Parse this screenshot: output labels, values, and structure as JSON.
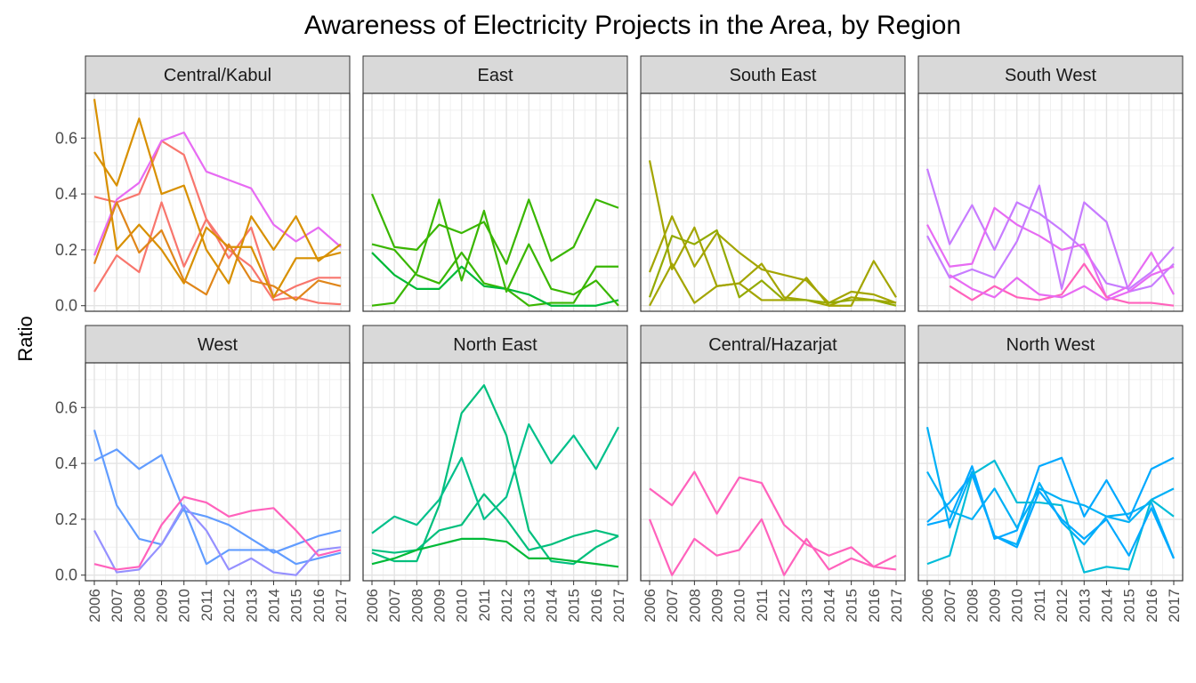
{
  "chart_data": {
    "type": "line",
    "title": "Awareness of Electricity Projects in the Area, by Region",
    "xlabel": "",
    "ylabel": "Ratio",
    "x": [
      "2006",
      "2007",
      "2008",
      "2009",
      "2010",
      "2011",
      "2012",
      "2013",
      "2014",
      "2015",
      "2016",
      "2017"
    ],
    "yticks": [
      "0.0",
      "0.2",
      "0.4",
      "0.6"
    ],
    "ylim": [
      -0.02,
      0.76
    ],
    "grid": true,
    "legend": "none",
    "facets": [
      {
        "name": "Central/Kabul",
        "series": [
          {
            "color": "#F8766D",
            "values": [
              0.39,
              0.37,
              0.4,
              0.59,
              0.54,
              0.31,
              0.2,
              0.14,
              0.02,
              0.03,
              0.01,
              0.005
            ]
          },
          {
            "color": "#E76BF3",
            "values": [
              0.18,
              0.38,
              0.44,
              0.59,
              0.62,
              0.48,
              0.45,
              0.42,
              0.29,
              0.23,
              0.28,
              0.21
            ]
          },
          {
            "color": "#F8766D",
            "values": [
              0.05,
              0.18,
              0.12,
              0.37,
              0.14,
              0.31,
              0.17,
              0.28,
              0.03,
              0.07,
              0.1,
              0.1
            ]
          },
          {
            "color": "#D89000",
            "values": [
              0.74,
              0.2,
              0.29,
              0.2,
              0.08,
              0.28,
              0.21,
              0.21,
              0.03,
              0.17,
              0.17,
              0.19
            ]
          },
          {
            "color": "#D89000",
            "values": [
              0.55,
              0.43,
              0.67,
              0.4,
              0.43,
              0.2,
              0.08,
              0.32,
              0.2,
              0.32,
              0.16,
              0.22
            ]
          },
          {
            "color": "#E0861A",
            "values": [
              0.15,
              0.37,
              0.19,
              0.27,
              0.09,
              0.04,
              0.22,
              0.09,
              0.07,
              0.02,
              0.09,
              0.07
            ]
          }
        ]
      },
      {
        "name": "East",
        "series": [
          {
            "color": "#39B600",
            "values": [
              0.4,
              0.21,
              0.2,
              0.29,
              0.26,
              0.3,
              0.15,
              0.38,
              0.16,
              0.21,
              0.38,
              0.35
            ]
          },
          {
            "color": "#39B600",
            "values": [
              0.22,
              0.2,
              0.11,
              0.08,
              0.19,
              0.08,
              0.06,
              0.0,
              0.01,
              0.01,
              0.14,
              0.14
            ]
          },
          {
            "color": "#00BA38",
            "values": [
              0.19,
              0.11,
              0.06,
              0.06,
              0.14,
              0.07,
              0.06,
              0.04,
              0.0,
              0.0,
              0.0,
              0.02
            ]
          },
          {
            "color": "#39B600",
            "values": [
              0.0,
              0.01,
              0.12,
              0.38,
              0.09,
              0.34,
              0.05,
              0.22,
              0.06,
              0.04,
              0.09,
              0.0
            ]
          }
        ]
      },
      {
        "name": "South East",
        "series": [
          {
            "color": "#A3A500",
            "values": [
              0.52,
              0.13,
              0.28,
              0.07,
              0.08,
              0.15,
              0.03,
              0.02,
              0.0,
              0.03,
              0.02,
              0.01
            ]
          },
          {
            "color": "#A3A500",
            "values": [
              0.12,
              0.32,
              0.14,
              0.26,
              0.19,
              0.13,
              0.11,
              0.09,
              0.01,
              0.05,
              0.04,
              0.01
            ]
          },
          {
            "color": "#93AA00",
            "values": [
              0.03,
              0.25,
              0.22,
              0.27,
              0.03,
              0.09,
              0.02,
              0.02,
              0.01,
              0.02,
              0.02,
              0.0
            ]
          },
          {
            "color": "#A3A500",
            "values": [
              0.0,
              0.15,
              0.01,
              0.07,
              0.08,
              0.02,
              0.02,
              0.1,
              0.0,
              0.0,
              0.16,
              0.03
            ]
          }
        ]
      },
      {
        "name": "South West",
        "series": [
          {
            "color": "#C77CFF",
            "values": [
              0.49,
              0.22,
              0.36,
              0.2,
              0.37,
              0.33,
              0.27,
              0.2,
              0.08,
              0.06,
              0.12,
              0.21
            ]
          },
          {
            "color": "#E76BF3",
            "values": [
              0.29,
              0.14,
              0.15,
              0.35,
              0.29,
              0.25,
              0.2,
              0.22,
              0.03,
              0.07,
              0.19,
              0.04
            ]
          },
          {
            "color": "#C77CFF",
            "values": [
              0.25,
              0.1,
              0.13,
              0.1,
              0.23,
              0.43,
              0.06,
              0.37,
              0.3,
              0.05,
              0.07,
              0.15
            ]
          },
          {
            "color": "#FF62BC",
            "values": [
              null,
              0.07,
              0.02,
              0.07,
              0.03,
              0.02,
              0.04,
              0.15,
              0.03,
              0.01,
              0.01,
              0.0
            ]
          },
          {
            "color": "#E76BF3",
            "values": [
              null,
              0.11,
              0.06,
              0.03,
              0.1,
              0.04,
              0.03,
              0.07,
              0.02,
              0.05,
              0.11,
              0.14
            ]
          }
        ]
      },
      {
        "name": "West",
        "series": [
          {
            "color": "#619CFF",
            "values": [
              0.41,
              0.45,
              0.38,
              0.43,
              0.23,
              0.21,
              0.18,
              0.13,
              0.08,
              0.11,
              0.14,
              0.16
            ]
          },
          {
            "color": "#619CFF",
            "values": [
              0.52,
              0.25,
              0.13,
              0.11,
              0.24,
              0.04,
              0.09,
              0.09,
              0.09,
              0.04,
              0.06,
              0.08
            ]
          },
          {
            "color": "#9590FF",
            "values": [
              0.16,
              0.01,
              0.02,
              0.11,
              0.25,
              0.16,
              0.02,
              0.06,
              0.01,
              0.0,
              0.09,
              0.1
            ]
          },
          {
            "color": "#FF62BC",
            "values": [
              0.04,
              0.02,
              0.03,
              0.18,
              0.28,
              0.26,
              0.21,
              0.23,
              0.24,
              0.16,
              0.07,
              0.09
            ]
          }
        ]
      },
      {
        "name": "North East",
        "series": [
          {
            "color": "#00BF7D",
            "values": [
              0.08,
              0.05,
              0.05,
              0.25,
              0.58,
              0.68,
              0.5,
              0.16,
              0.05,
              0.04,
              0.1,
              0.14
            ]
          },
          {
            "color": "#00BF7D",
            "values": [
              0.09,
              0.08,
              0.09,
              0.16,
              0.18,
              0.29,
              0.2,
              0.09,
              0.11,
              0.14,
              0.16,
              0.14
            ]
          },
          {
            "color": "#00C08B",
            "values": [
              0.15,
              0.21,
              0.18,
              0.27,
              0.42,
              0.2,
              0.28,
              0.54,
              0.4,
              0.5,
              0.38,
              0.53
            ]
          },
          {
            "color": "#00BA38",
            "values": [
              0.04,
              0.06,
              0.09,
              0.11,
              0.13,
              0.13,
              0.12,
              0.06,
              0.06,
              0.05,
              0.04,
              0.03
            ]
          }
        ]
      },
      {
        "name": "Central/Hazarjat",
        "series": [
          {
            "color": "#FF62BC",
            "values": [
              0.31,
              0.25,
              0.37,
              0.22,
              0.35,
              0.33,
              0.18,
              0.11,
              0.07,
              0.1,
              0.03,
              0.07
            ]
          },
          {
            "color": "#FF62BC",
            "values": [
              0.2,
              0.0,
              0.13,
              0.07,
              0.09,
              0.2,
              0.0,
              0.13,
              0.02,
              0.06,
              0.03,
              0.02
            ]
          }
        ]
      },
      {
        "name": "North West",
        "series": [
          {
            "color": "#00B0F6",
            "values": [
              0.53,
              0.17,
              0.37,
              0.14,
              0.11,
              0.33,
              0.19,
              0.11,
              0.21,
              0.22,
              0.26,
              0.06
            ]
          },
          {
            "color": "#00A9FF",
            "values": [
              0.18,
              0.2,
              0.39,
              0.13,
              0.16,
              0.39,
              0.42,
              0.21,
              0.34,
              0.2,
              0.38,
              0.42
            ]
          },
          {
            "color": "#00B0F6",
            "values": [
              0.37,
              0.23,
              0.2,
              0.31,
              0.17,
              0.31,
              0.27,
              0.25,
              0.21,
              0.19,
              0.27,
              0.31
            ]
          },
          {
            "color": "#00BCD8",
            "values": [
              0.04,
              0.07,
              0.36,
              0.41,
              0.26,
              0.26,
              0.25,
              0.01,
              0.03,
              0.02,
              0.27,
              0.21
            ]
          },
          {
            "color": "#00A9FF",
            "values": [
              0.19,
              0.26,
              0.36,
              0.14,
              0.1,
              0.3,
              0.2,
              0.13,
              0.2,
              0.07,
              0.24,
              0.06
            ]
          }
        ]
      }
    ]
  }
}
